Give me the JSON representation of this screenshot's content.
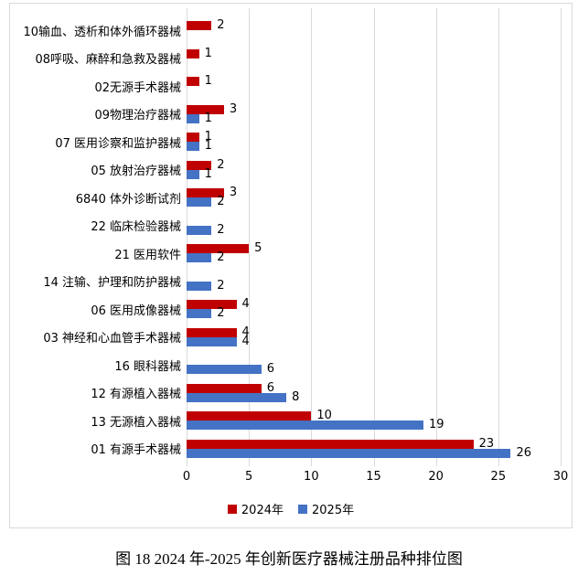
{
  "figure": {
    "caption": "图 18 2024 年-2025 年创新医疗器械注册品种排位图"
  },
  "chart_data": {
    "type": "bar",
    "orientation": "horizontal",
    "title": "",
    "xlabel": "",
    "ylabel": "",
    "categories": [
      "10输血、透析和体外循环器械",
      "08呼吸、麻醉和急救及器械",
      "02无源手术器械",
      "09物理治疗器械",
      "07 医用诊察和监护器械",
      "05 放射治疗器械",
      "6840 体外诊断试剂",
      "22 临床检验器械",
      "21 医用软件",
      "14 注输、护理和防护器械",
      "06 医用成像器械",
      "03 神经和心血管手术器械",
      "16 眼科器械",
      "12 有源植入器械",
      "13 无源植入器械",
      "01 有源手术器械"
    ],
    "series": [
      {
        "name": "2024年",
        "color": "#C00000",
        "values": [
          2,
          1,
          1,
          3,
          1,
          2,
          3,
          0,
          5,
          0,
          4,
          4,
          0,
          6,
          10,
          23
        ]
      },
      {
        "name": "2025年",
        "color": "#4472C4",
        "values": [
          0,
          0,
          0,
          1,
          1,
          1,
          2,
          2,
          2,
          2,
          2,
          4,
          6,
          8,
          19,
          26
        ]
      }
    ],
    "xlim": [
      0,
      30
    ],
    "xticks": [
      0,
      5,
      10,
      15,
      20,
      25,
      30
    ],
    "legend_position": "bottom",
    "gridlines": "vertical",
    "grid_color": "#d9d9d9"
  }
}
